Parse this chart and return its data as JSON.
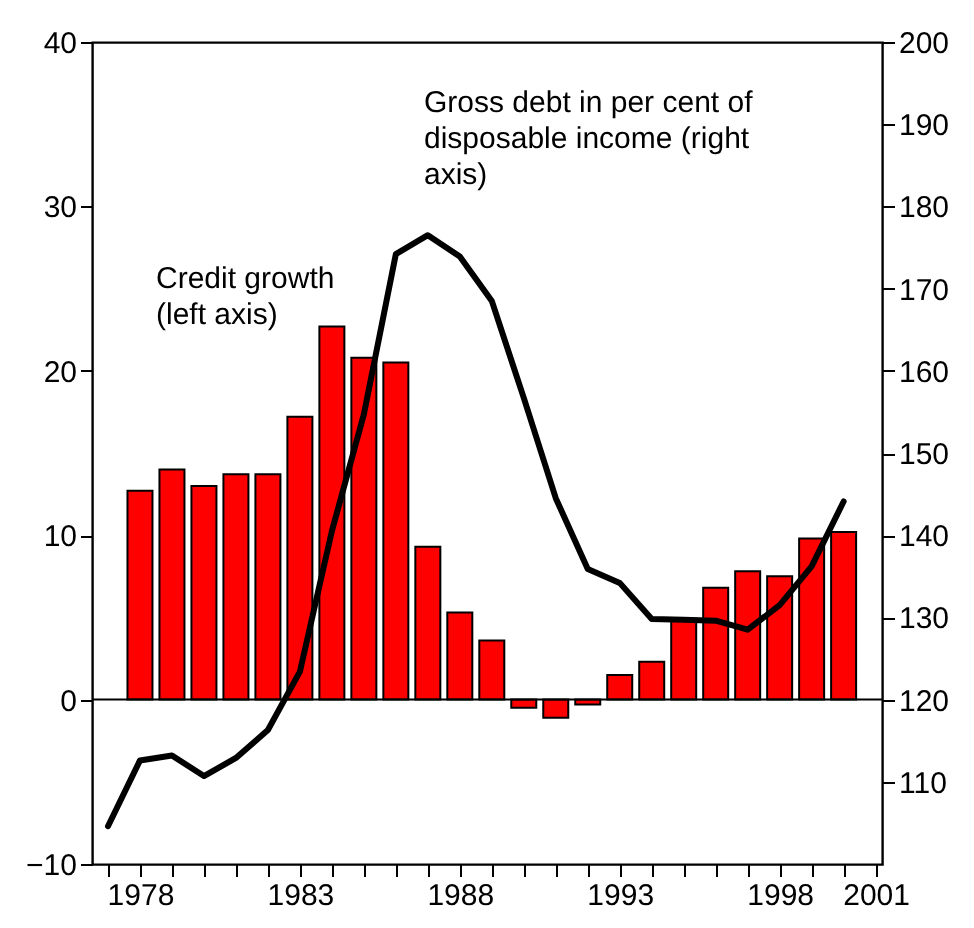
{
  "chart_data": {
    "type": "bar",
    "annotations": [
      "Credit growth\n(left axis)",
      "Gross debt in per cent of\ndisposable income (right\naxis)"
    ],
    "xlim": [
      1976.5,
      2001.2
    ],
    "xticks": [
      {
        "value": 1977,
        "label": null
      },
      1978,
      {
        "value": 1979,
        "label": null
      },
      {
        "value": 1980,
        "label": null
      },
      {
        "value": 1981,
        "label": null
      },
      {
        "value": 1982,
        "label": null
      },
      1983,
      {
        "value": 1984,
        "label": null
      },
      {
        "value": 1985,
        "label": null
      },
      {
        "value": 1986,
        "label": null
      },
      {
        "value": 1987,
        "label": null
      },
      1988,
      {
        "value": 1989,
        "label": null
      },
      {
        "value": 1990,
        "label": null
      },
      {
        "value": 1991,
        "label": null
      },
      {
        "value": 1992,
        "label": null
      },
      1993,
      {
        "value": 1994,
        "label": null
      },
      {
        "value": 1995,
        "label": null
      },
      {
        "value": 1996,
        "label": null
      },
      {
        "value": 1997,
        "label": null
      },
      1998,
      {
        "value": 1999,
        "label": null
      },
      {
        "value": 2000,
        "label": null
      },
      2001
    ],
    "ylim": [
      -10,
      40
    ],
    "yticks": [
      -10,
      0,
      10,
      20,
      30,
      40
    ],
    "y2lim": [
      100,
      200
    ],
    "y2ticks": [
      110,
      120,
      130,
      140,
      150,
      160,
      170,
      180,
      190,
      200
    ],
    "ref_lines": [
      {
        "axis": "y",
        "value": 0,
        "color": "#000000"
      }
    ],
    "grid": false,
    "series": [
      {
        "color": "#ff0000",
        "x": [
          1978,
          1979,
          1980,
          1981,
          1982,
          1983,
          1984,
          1985,
          1986,
          1987,
          1988,
          1989,
          1990,
          1991,
          1992,
          1993,
          1994,
          1995,
          1996,
          1997,
          1998,
          1999,
          2000
        ],
        "values": [
          12.7,
          14.0,
          13.0,
          13.7,
          13.7,
          17.2,
          22.7,
          20.8,
          20.5,
          9.3,
          5.3,
          3.6,
          -0.5,
          -1.1,
          -0.3,
          1.5,
          2.3,
          4.9,
          6.8,
          7.8,
          7.5,
          9.8,
          10.2
        ]
      },
      {
        "type": "line",
        "axis": "y2",
        "color": "#000000",
        "x": [
          1977,
          1978,
          1979,
          1980,
          1981,
          1982,
          1983,
          1984,
          1985,
          1986,
          1987,
          1988,
          1989,
          1990,
          1991,
          1992,
          1993,
          1994,
          1995,
          1996,
          1997,
          1998,
          1999,
          2000
        ],
        "values": [
          104.6,
          112.6,
          113.2,
          110.7,
          112.9,
          116.3,
          123.4,
          140.5,
          154.7,
          174.2,
          176.5,
          173.9,
          168.5,
          156.7,
          144.5,
          135.9,
          134.2,
          129.8,
          129.7,
          129.6,
          128.5,
          131.5,
          136.2,
          144.1
        ]
      }
    ]
  }
}
